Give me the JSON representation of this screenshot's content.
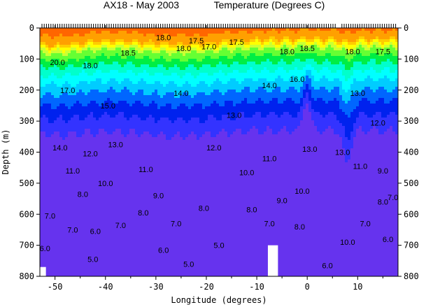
{
  "chart_data": {
    "type": "contour",
    "title_left": "AX18 - May 2003",
    "title_right": "Temperature (Degrees C)",
    "xlabel": "Longitude (degrees)",
    "ylabel": "Depth (m)",
    "xlim": [
      -53,
      18
    ],
    "ylim": [
      0,
      800
    ],
    "y_inverted": true,
    "x_ticks": [
      -50,
      -40,
      -30,
      -20,
      -10,
      0,
      10
    ],
    "y_ticks": [
      0,
      100,
      200,
      300,
      400,
      500,
      600,
      700,
      800
    ],
    "levels": [
      20.0,
      18.5,
      18.0,
      17.5,
      17.0,
      16.0,
      15.0,
      14.0,
      13.0,
      12.0,
      11.0,
      10.0,
      9.0,
      8.0,
      7.0,
      6.0,
      5.0
    ],
    "bands": [
      {
        "min": 20.0,
        "color": "#ff6600"
      },
      {
        "min": 18.5,
        "color": "#ffa000"
      },
      {
        "min": 18.0,
        "color": "#ffcc00"
      },
      {
        "min": 17.5,
        "color": "#ffff00"
      },
      {
        "min": 17.0,
        "color": "#ccff33"
      },
      {
        "min": 16.0,
        "color": "#66ff33"
      },
      {
        "min": 15.0,
        "color": "#00ee44"
      },
      {
        "min": 14.0,
        "color": "#00ffcc"
      },
      {
        "min": 13.0,
        "color": "#00ffff"
      },
      {
        "min": 12.0,
        "color": "#00ccff"
      },
      {
        "min": 11.0,
        "color": "#0066ff"
      },
      {
        "min": 10.0,
        "color": "#0022ee"
      },
      {
        "min": 9.0,
        "color": "#3333ff"
      },
      {
        "min": 0,
        "color": "#6633ee"
      }
    ],
    "contour_labels": [
      {
        "text": "20.0",
        "lon": -49.5,
        "depth": 110
      },
      {
        "text": "18.0",
        "lon": -43,
        "depth": 120
      },
      {
        "text": "18.5",
        "lon": -35.5,
        "depth": 80
      },
      {
        "text": "18.0",
        "lon": -28.5,
        "depth": 30
      },
      {
        "text": "18.0",
        "lon": -24.5,
        "depth": 65
      },
      {
        "text": "17.5",
        "lon": -22,
        "depth": 40
      },
      {
        "text": "17.0",
        "lon": -19.5,
        "depth": 60
      },
      {
        "text": "17.5",
        "lon": -14,
        "depth": 45
      },
      {
        "text": "18.0",
        "lon": -4,
        "depth": 75
      },
      {
        "text": "18.5",
        "lon": 0,
        "depth": 65
      },
      {
        "text": "18.0",
        "lon": 9,
        "depth": 75
      },
      {
        "text": "17.5",
        "lon": 15,
        "depth": 75
      },
      {
        "text": "17.0",
        "lon": -47.5,
        "depth": 200
      },
      {
        "text": "15.0",
        "lon": -39.5,
        "depth": 250
      },
      {
        "text": "14.0",
        "lon": -25,
        "depth": 210
      },
      {
        "text": "14.0",
        "lon": -7.5,
        "depth": 185
      },
      {
        "text": "16.0",
        "lon": -2,
        "depth": 165
      },
      {
        "text": "13.0",
        "lon": 10,
        "depth": 210
      },
      {
        "text": "13.0",
        "lon": -14.5,
        "depth": 280
      },
      {
        "text": "12.0",
        "lon": 14,
        "depth": 305
      },
      {
        "text": "14.0",
        "lon": -49,
        "depth": 385
      },
      {
        "text": "13.0",
        "lon": -38,
        "depth": 375
      },
      {
        "text": "12.0",
        "lon": -18.5,
        "depth": 385
      },
      {
        "text": "11.0",
        "lon": -7.5,
        "depth": 420
      },
      {
        "text": "13.0",
        "lon": 0.5,
        "depth": 390
      },
      {
        "text": "13.0",
        "lon": 7,
        "depth": 400
      },
      {
        "text": "12.0",
        "lon": -43,
        "depth": 405
      },
      {
        "text": "11.0",
        "lon": -46.5,
        "depth": 460
      },
      {
        "text": "11.0",
        "lon": -32,
        "depth": 455
      },
      {
        "text": "10.0",
        "lon": -12,
        "depth": 465
      },
      {
        "text": "11.0",
        "lon": 10.5,
        "depth": 445
      },
      {
        "text": "10.0",
        "lon": -40,
        "depth": 500
      },
      {
        "text": "9.0",
        "lon": 15,
        "depth": 460
      },
      {
        "text": "8.0",
        "lon": -44.5,
        "depth": 535
      },
      {
        "text": "9.0",
        "lon": -29.5,
        "depth": 540
      },
      {
        "text": "9.0",
        "lon": -5,
        "depth": 555
      },
      {
        "text": "10.0",
        "lon": -1,
        "depth": 525
      },
      {
        "text": "8.0",
        "lon": 15,
        "depth": 560
      },
      {
        "text": "7.0",
        "lon": 17,
        "depth": 545
      },
      {
        "text": "8.0",
        "lon": -20.5,
        "depth": 580
      },
      {
        "text": "8.0",
        "lon": -32.5,
        "depth": 595
      },
      {
        "text": "8.0",
        "lon": -11,
        "depth": 585
      },
      {
        "text": "7.0",
        "lon": -51,
        "depth": 605
      },
      {
        "text": "7.0",
        "lon": -46.5,
        "depth": 650
      },
      {
        "text": "7.0",
        "lon": -37,
        "depth": 635
      },
      {
        "text": "7.0",
        "lon": -26,
        "depth": 630
      },
      {
        "text": "6.0",
        "lon": -42,
        "depth": 655
      },
      {
        "text": "8.0",
        "lon": -1.5,
        "depth": 640
      },
      {
        "text": "7.0",
        "lon": -7.5,
        "depth": 630
      },
      {
        "text": "7.0",
        "lon": 11.5,
        "depth": 630
      },
      {
        "text": "5.0",
        "lon": -17.5,
        "depth": 700
      },
      {
        "text": "6.0",
        "lon": -28.5,
        "depth": 715
      },
      {
        "text": "10.0",
        "lon": 8,
        "depth": 690
      },
      {
        "text": "6.0",
        "lon": 16,
        "depth": 680
      },
      {
        "text": "6.0",
        "lon": -52,
        "depth": 710
      },
      {
        "text": "5.0",
        "lon": -42.5,
        "depth": 745
      },
      {
        "text": "5.0",
        "lon": -23.5,
        "depth": 760
      },
      {
        "text": "6.0",
        "lon": 4,
        "depth": 765
      }
    ],
    "gaps": [
      {
        "lon_from": -53,
        "lon_to": -51.8,
        "depth_from": 770,
        "depth_to": 800
      },
      {
        "lon_from": -7.8,
        "lon_to": -5.8,
        "depth_from": 700,
        "depth_to": 800
      }
    ]
  }
}
